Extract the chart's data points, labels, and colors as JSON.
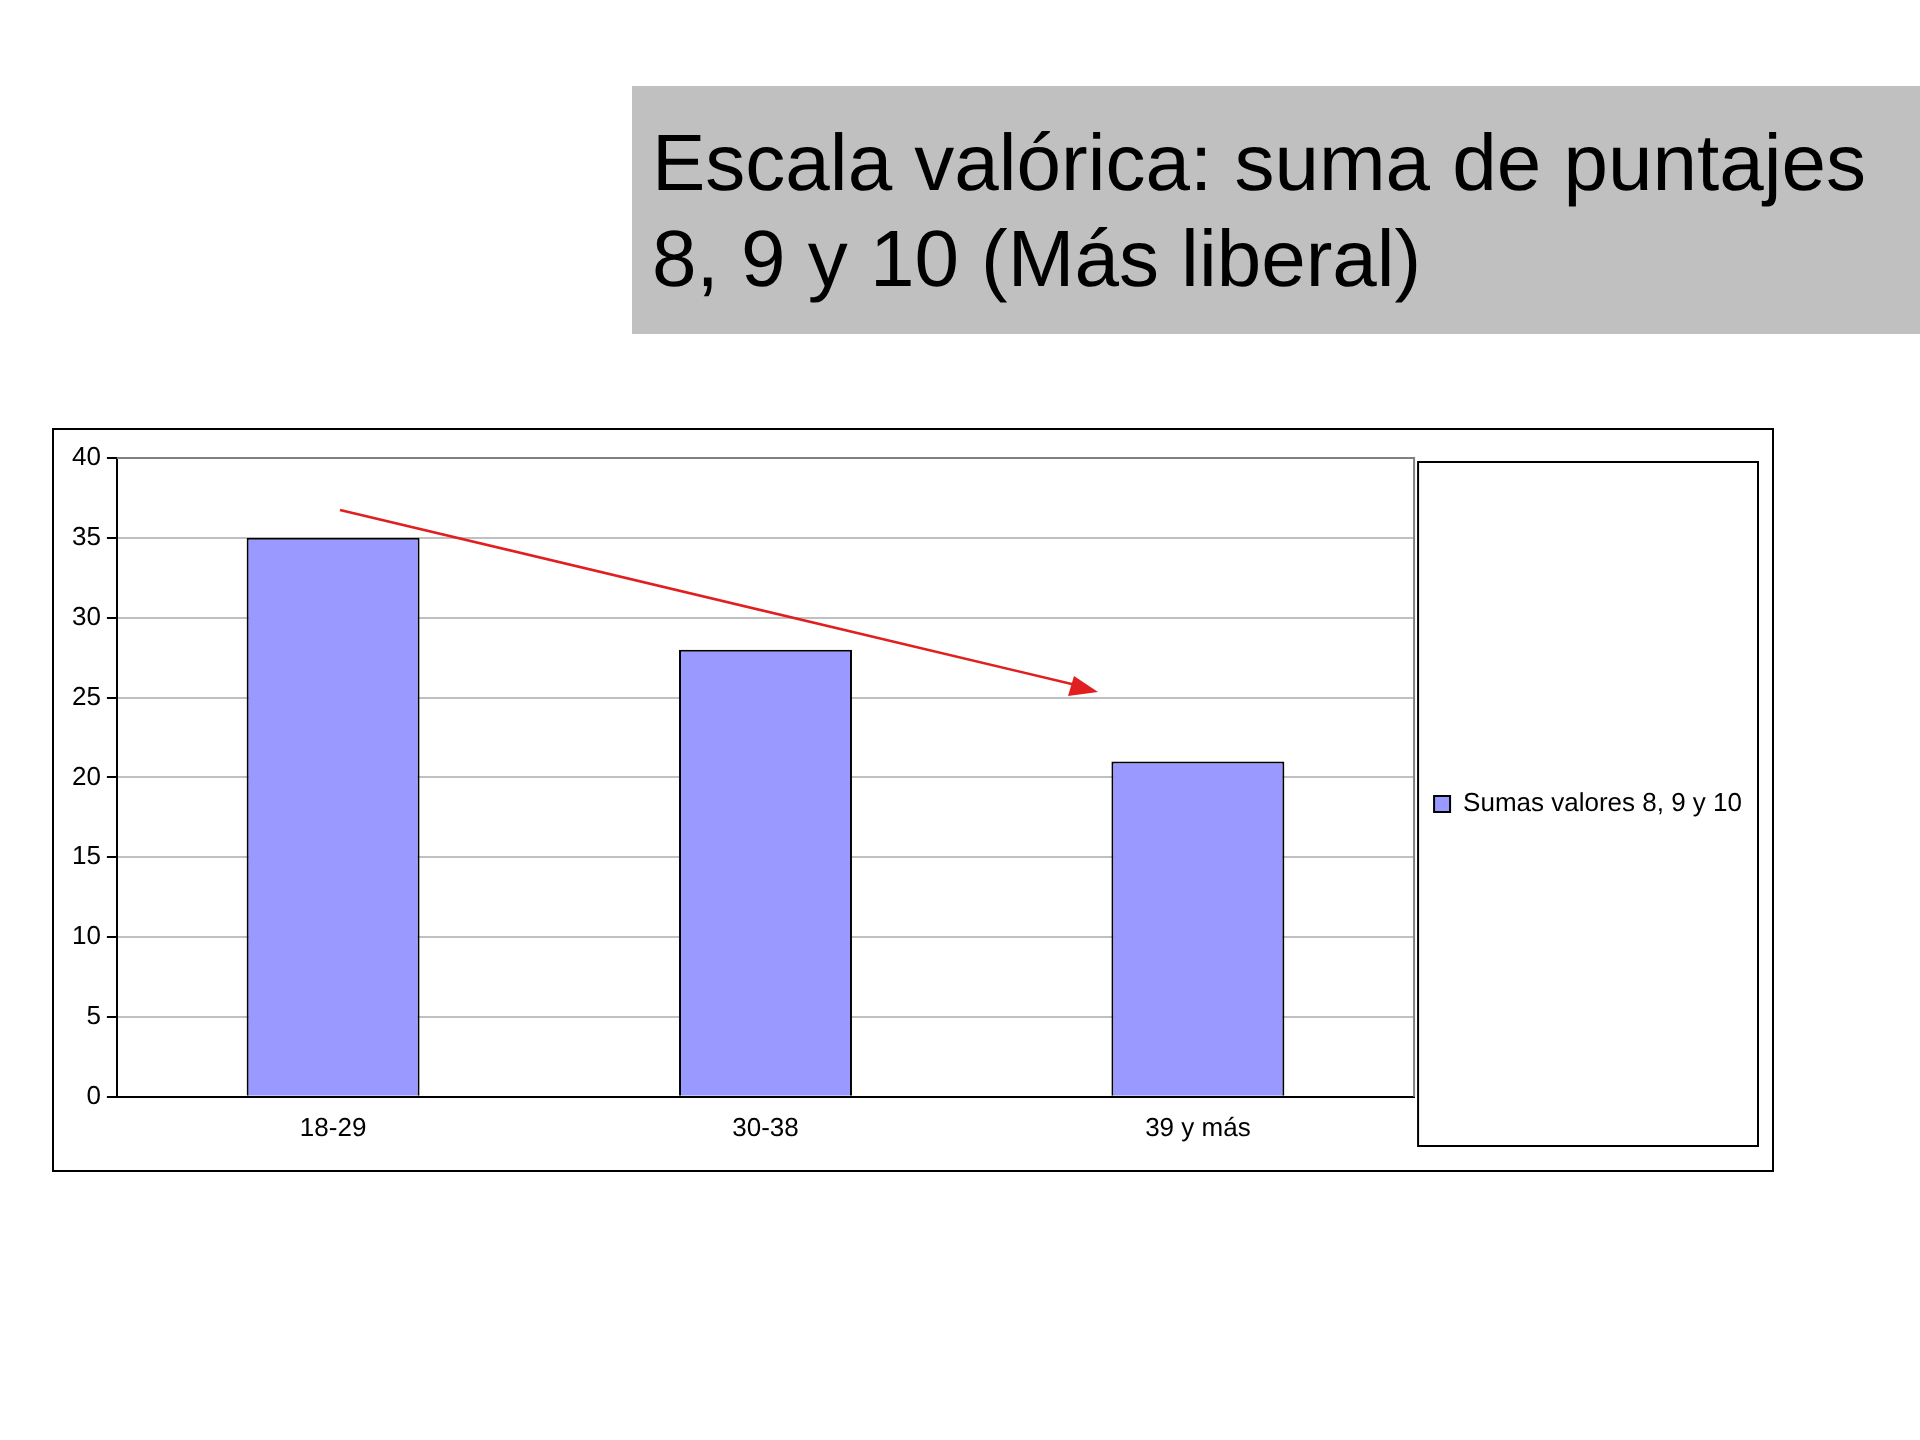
{
  "chart_data": {
    "type": "bar",
    "title": "Escala valórica: suma de puntajes 8, 9 y 10  (Más liberal)",
    "categories": [
      "18-29",
      "30-38",
      "39 y más"
    ],
    "series": [
      {
        "name": "Sumas valores 8, 9 y 10",
        "color": "#9999ff",
        "values": [
          35,
          28,
          21
        ]
      }
    ],
    "ylim": [
      0,
      40
    ],
    "yticks": [
      0,
      5,
      10,
      15,
      20,
      25,
      30,
      35,
      40
    ],
    "grid": "y",
    "legend": "right"
  }
}
